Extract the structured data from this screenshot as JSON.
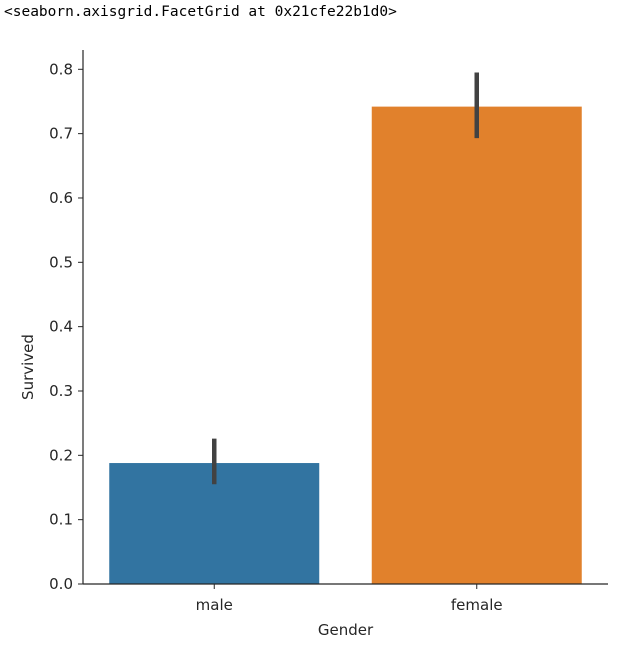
{
  "output_text": "<seaborn.axisgrid.FacetGrid at 0x21cfe22b1d0>",
  "chart_data": {
    "type": "bar",
    "categories": [
      "male",
      "female"
    ],
    "values": [
      0.188,
      0.742
    ],
    "error_bars": [
      {
        "low": 0.155,
        "high": 0.226
      },
      {
        "low": 0.693,
        "high": 0.795
      }
    ],
    "colors": [
      "#3274a1",
      "#e1812c"
    ],
    "errorbar_color": "#424242",
    "xlabel": "Gender",
    "ylabel": "Survived",
    "ylim": [
      0,
      0.83
    ],
    "yticks": [
      0.0,
      0.1,
      0.2,
      0.3,
      0.4,
      0.5,
      0.6,
      0.7,
      0.8
    ],
    "ytick_labels": [
      "0.0",
      "0.1",
      "0.2",
      "0.3",
      "0.4",
      "0.5",
      "0.6",
      "0.7",
      "0.8"
    ],
    "grid": false
  }
}
